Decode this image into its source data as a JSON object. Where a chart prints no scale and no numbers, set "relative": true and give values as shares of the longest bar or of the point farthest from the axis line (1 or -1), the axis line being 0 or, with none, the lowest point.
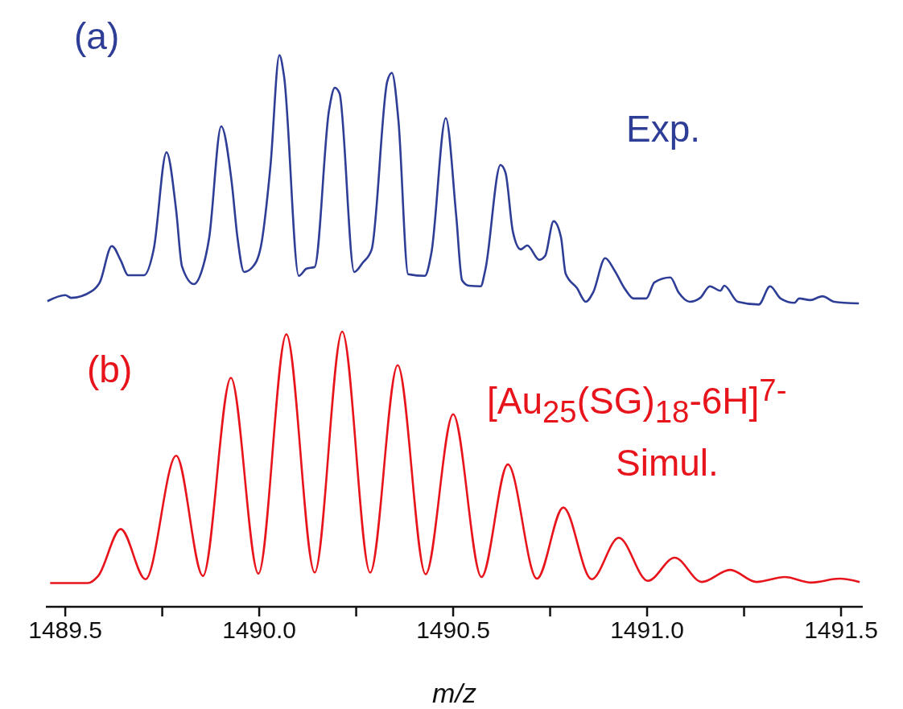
{
  "chart_data": {
    "type": "line",
    "relative": true,
    "xlabel": "m/z",
    "xlim": [
      1489.45,
      1491.556
    ],
    "xticks": [
      {
        "value": 1489.5,
        "label": "1489.5"
      },
      {
        "value": 1489.75,
        "label": null
      },
      {
        "value": 1490.0,
        "label": "1490.0"
      },
      {
        "value": 1490.25,
        "label": null
      },
      {
        "value": 1490.5,
        "label": "1490.5"
      },
      {
        "value": 1490.75,
        "label": null
      },
      {
        "value": 1491.0,
        "label": "1491.0"
      },
      {
        "value": 1491.25,
        "label": null
      },
      {
        "value": 1491.5,
        "label": "1491.5"
      }
    ],
    "tick_labels": "x",
    "marker": "none",
    "annotations": [
      "(a)",
      "(b)",
      "[Au$_{25}$(SG)$_{18}$-6H]$^{7-}$"
    ],
    "series": [
      {
        "name": "Exp.",
        "color": "#2e3d96",
        "x": [
          1489.454,
          1489.5,
          1489.515,
          1489.568,
          1489.589,
          1489.62,
          1489.643,
          1489.662,
          1489.703,
          1489.728,
          1489.761,
          1489.786,
          1489.801,
          1489.832,
          1489.851,
          1489.871,
          1489.902,
          1489.929,
          1489.944,
          1489.961,
          1489.983,
          1490.004,
          1490.029,
          1490.052,
          1490.064,
          1490.102,
          1490.122,
          1490.143,
          1490.18,
          1490.195,
          1490.207,
          1490.245,
          1490.266,
          1490.29,
          1490.33,
          1490.342,
          1490.359,
          1490.384,
          1490.427,
          1490.444,
          1490.481,
          1490.508,
          1490.523,
          1490.541,
          1490.571,
          1490.583,
          1490.622,
          1490.635,
          1490.654,
          1490.674,
          1490.691,
          1490.722,
          1490.737,
          1490.759,
          1490.778,
          1490.79,
          1490.819,
          1490.842,
          1490.861,
          1490.892,
          1490.915,
          1490.944,
          1490.965,
          1490.998,
          1491.019,
          1491.06,
          1491.081,
          1491.11,
          1491.137,
          1491.162,
          1491.189,
          1491.199,
          1491.234,
          1491.288,
          1491.317,
          1491.344,
          1491.38,
          1491.392,
          1491.421,
          1491.452,
          1491.483,
          1491.546
        ],
        "values": [
          0.554,
          0.565,
          0.56,
          0.572,
          0.588,
          0.654,
          0.628,
          0.601,
          0.601,
          0.648,
          0.824,
          0.718,
          0.617,
          0.585,
          0.607,
          0.669,
          0.871,
          0.77,
          0.669,
          0.607,
          0.616,
          0.652,
          0.799,
          1.0,
          0.962,
          0.6,
          0.613,
          0.616,
          0.9,
          0.941,
          0.931,
          0.607,
          0.623,
          0.648,
          0.952,
          0.968,
          0.881,
          0.603,
          0.6,
          0.642,
          0.886,
          0.708,
          0.592,
          0.582,
          0.581,
          0.611,
          0.801,
          0.787,
          0.68,
          0.648,
          0.655,
          0.629,
          0.636,
          0.699,
          0.67,
          0.604,
          0.578,
          0.553,
          0.57,
          0.632,
          0.611,
          0.575,
          0.559,
          0.559,
          0.588,
          0.597,
          0.57,
          0.553,
          0.56,
          0.581,
          0.573,
          0.582,
          0.553,
          0.548,
          0.581,
          0.559,
          0.551,
          0.559,
          0.556,
          0.563,
          0.553,
          0.55
        ]
      },
      {
        "name": "Simul.",
        "color": "#e8141c",
        "x": [
          1489.461,
          1489.558,
          1489.585,
          1489.643,
          1489.707,
          1489.786,
          1489.855,
          1489.927,
          1489.998,
          1490.07,
          1490.143,
          1490.214,
          1490.286,
          1490.357,
          1490.429,
          1490.5,
          1490.573,
          1490.641,
          1490.716,
          1490.784,
          1490.857,
          1490.927,
          1491.002,
          1491.071,
          1491.141,
          1491.214,
          1491.282,
          1491.355,
          1491.423,
          1491.496,
          1491.548
        ],
        "values": [
          0.043,
          0.043,
          0.056,
          0.141,
          0.05,
          0.274,
          0.056,
          0.415,
          0.06,
          0.494,
          0.062,
          0.499,
          0.062,
          0.438,
          0.059,
          0.349,
          0.054,
          0.258,
          0.051,
          0.18,
          0.05,
          0.125,
          0.047,
          0.089,
          0.045,
          0.067,
          0.045,
          0.054,
          0.044,
          0.051,
          0.045
        ]
      }
    ]
  }
}
